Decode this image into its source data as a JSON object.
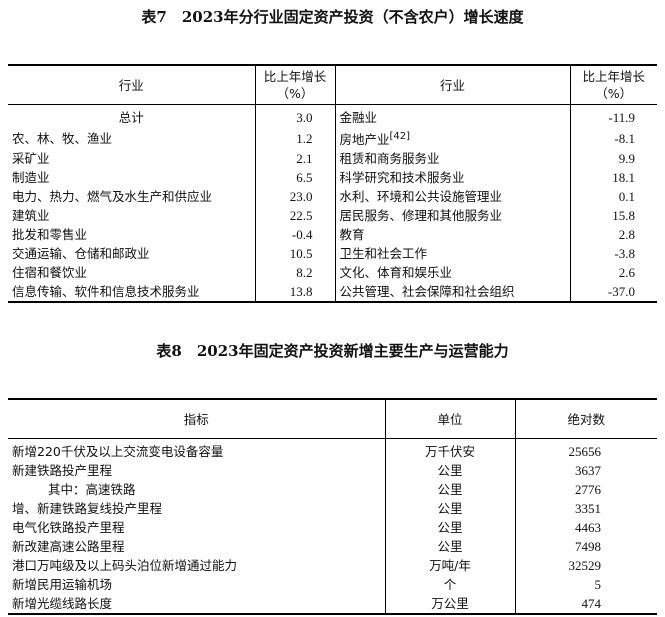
{
  "table7": {
    "title": "表7　2023年分行业固定资产投资（不含农户）增长速度",
    "headers": {
      "industry": "行业",
      "growth_line1": "比上年增长",
      "growth_line2": "（%）"
    },
    "left_rows": [
      {
        "industry": "总计",
        "growth": "3.0"
      },
      {
        "industry": "农、林、牧、渔业",
        "growth": "1.2"
      },
      {
        "industry": "采矿业",
        "growth": "2.1"
      },
      {
        "industry": "制造业",
        "growth": "6.5"
      },
      {
        "industry": "电力、热力、燃气及水生产和供应业",
        "growth": "23.0"
      },
      {
        "industry": "建筑业",
        "growth": "22.5"
      },
      {
        "industry": "批发和零售业",
        "growth": "-0.4"
      },
      {
        "industry": "交通运输、仓储和邮政业",
        "growth": "10.5"
      },
      {
        "industry": "住宿和餐饮业",
        "growth": "8.2"
      },
      {
        "industry": "信息传输、软件和信息技术服务业",
        "growth": "13.8"
      }
    ],
    "right_rows": [
      {
        "industry": "金融业",
        "growth": "-11.9"
      },
      {
        "industry": "房地产业",
        "note": "[42]",
        "growth": "-8.1"
      },
      {
        "industry": "租赁和商务服务业",
        "growth": "9.9"
      },
      {
        "industry": "科学研究和技术服务业",
        "growth": "18.1"
      },
      {
        "industry": "水利、环境和公共设施管理业",
        "growth": "0.1"
      },
      {
        "industry": "居民服务、修理和其他服务业",
        "growth": "15.8"
      },
      {
        "industry": "教育",
        "growth": "2.8"
      },
      {
        "industry": "卫生和社会工作",
        "growth": "-3.8"
      },
      {
        "industry": "文化、体育和娱乐业",
        "growth": "2.6"
      },
      {
        "industry": "公共管理、社会保障和社会组织",
        "growth": "-37.0"
      }
    ]
  },
  "table8": {
    "title": "表8　2023年固定资产投资新增主要生产与运营能力",
    "headers": {
      "indicator": "指标",
      "unit": "单位",
      "value": "绝对数"
    },
    "rows": [
      {
        "indicator": "新增220千伏及以上交流变电设备容量",
        "unit": "万千伏安",
        "value": "25656"
      },
      {
        "indicator": "新建铁路投产里程",
        "unit": "公里",
        "value": "3637"
      },
      {
        "indicator": "其中：高速铁路",
        "unit": "公里",
        "value": "2776"
      },
      {
        "indicator": "增、新建铁路复线投产里程",
        "unit": "公里",
        "value": "3351"
      },
      {
        "indicator": "电气化铁路投产里程",
        "unit": "公里",
        "value": "4463"
      },
      {
        "indicator": "新改建高速公路里程",
        "unit": "公里",
        "value": "7498"
      },
      {
        "indicator": "港口万吨级及以上码头泊位新增通过能力",
        "unit": "万吨/年",
        "value": "32529"
      },
      {
        "indicator": "新增民用运输机场",
        "unit": "个",
        "value": "5"
      },
      {
        "indicator": "新增光缆线路长度",
        "unit": "万公里",
        "value": "474"
      }
    ]
  }
}
